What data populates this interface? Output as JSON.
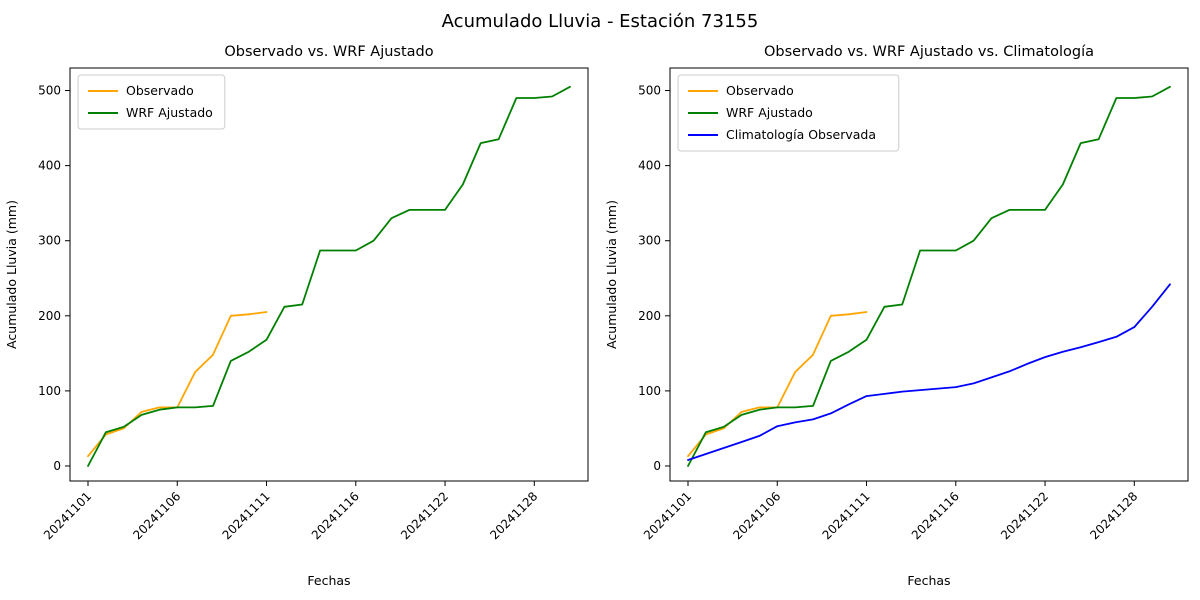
{
  "figure": {
    "title": "Acumulado Lluvia - Estación 73155",
    "background": "#ffffff"
  },
  "chart_data": [
    {
      "type": "line",
      "title": "Observado vs. WRF Ajustado",
      "xlabel": "Fechas",
      "ylabel": "Acumulado Lluvia (mm)",
      "ylim": [
        -20,
        530
      ],
      "y_ticks": [
        0,
        100,
        200,
        300,
        400,
        500
      ],
      "x_count": 28,
      "x_tick_labels": [
        "20241101",
        "20241106",
        "20241111",
        "20241116",
        "20241122",
        "20241128"
      ],
      "x_tick_indices": [
        0,
        5,
        10,
        15,
        20,
        25
      ],
      "grid": false,
      "legend_position": "upper-left",
      "series": [
        {
          "name": "Observado",
          "color": "#ffa500",
          "values": [
            13,
            42,
            50,
            72,
            78,
            78,
            125,
            148,
            200,
            202,
            205
          ]
        },
        {
          "name": "WRF Ajustado",
          "color": "#008000",
          "values": [
            0,
            45,
            52,
            68,
            75,
            78,
            78,
            80,
            140,
            152,
            168,
            212,
            215,
            287,
            287,
            287,
            300,
            330,
            341,
            341,
            341,
            375,
            430,
            435,
            490,
            490,
            492,
            505
          ]
        }
      ]
    },
    {
      "type": "line",
      "title": "Observado vs. WRF Ajustado vs. Climatología",
      "xlabel": "Fechas",
      "ylabel": "Acumulado Lluvia (mm)",
      "ylim": [
        -20,
        530
      ],
      "y_ticks": [
        0,
        100,
        200,
        300,
        400,
        500
      ],
      "x_count": 28,
      "x_tick_labels": [
        "20241101",
        "20241106",
        "20241111",
        "20241116",
        "20241122",
        "20241128"
      ],
      "x_tick_indices": [
        0,
        5,
        10,
        15,
        20,
        25
      ],
      "grid": false,
      "legend_position": "upper-left",
      "series": [
        {
          "name": "Observado",
          "color": "#ffa500",
          "values": [
            13,
            42,
            50,
            72,
            78,
            78,
            125,
            148,
            200,
            202,
            205
          ]
        },
        {
          "name": "WRF Ajustado",
          "color": "#008000",
          "values": [
            0,
            45,
            52,
            68,
            75,
            78,
            78,
            80,
            140,
            152,
            168,
            212,
            215,
            287,
            287,
            287,
            300,
            330,
            341,
            341,
            341,
            375,
            430,
            435,
            490,
            490,
            492,
            505
          ]
        },
        {
          "name": "Climatología Observada",
          "color": "#0000ff",
          "values": [
            8,
            16,
            24,
            32,
            40,
            53,
            58,
            62,
            70,
            82,
            93,
            96,
            99,
            101,
            103,
            105,
            110,
            118,
            126,
            136,
            145,
            152,
            158,
            165,
            172,
            185,
            212,
            242
          ]
        }
      ]
    }
  ]
}
